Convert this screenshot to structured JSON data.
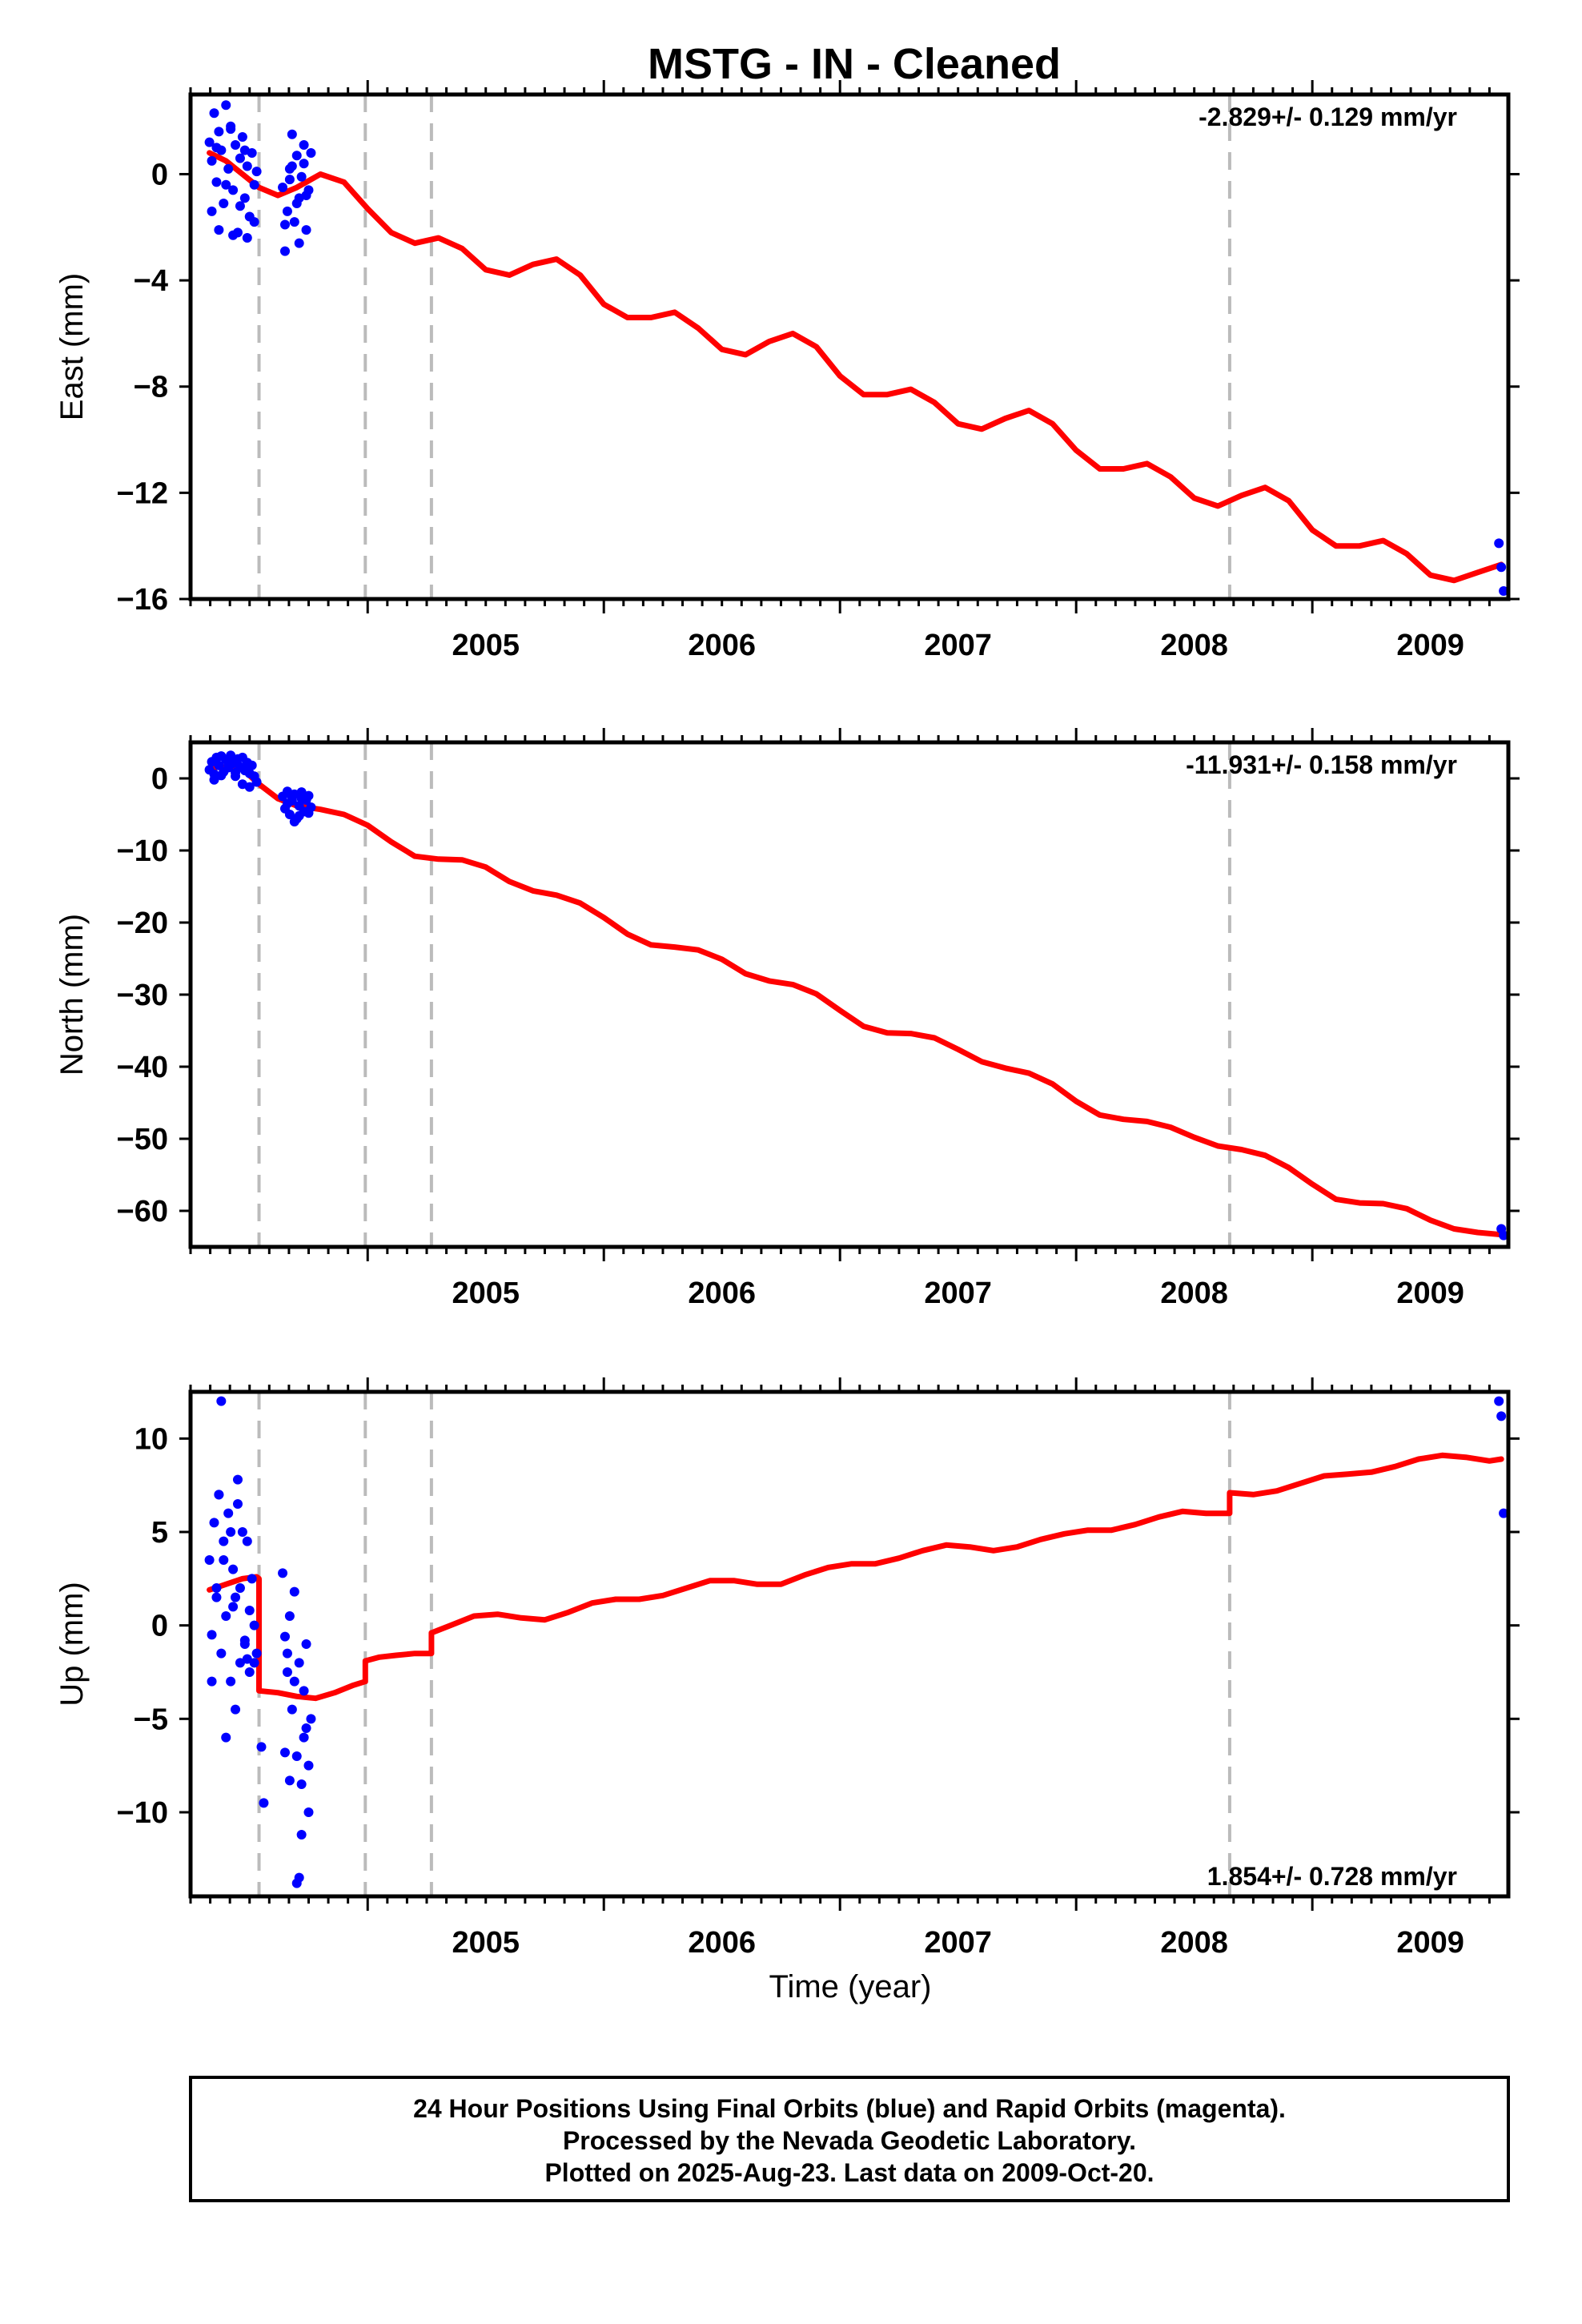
{
  "title": "MSTG  - IN - Cleaned",
  "xlabel": "Time (year)",
  "colors": {
    "data": "#0000ff",
    "model": "#ff0000",
    "breaks": "#bbbbbb",
    "frame": "#000000"
  },
  "footer": {
    "line1": "24 Hour Positions Using Final Orbits (blue) and Rapid Orbits (magenta).",
    "line2": "Processed by the Nevada Geodetic Laboratory.",
    "line3": "Plotted on 2025-Aug-23. Last data on 2009-Oct-20."
  },
  "chart_data": [
    {
      "type": "scatter",
      "panel": "east",
      "ylabel": "East (mm)",
      "rate_label": "-2.829+/- 0.129 mm/yr",
      "xlim": [
        2004.25,
        2009.83
      ],
      "ylim": [
        -16,
        3
      ],
      "yticks": [
        0,
        -4,
        -8,
        -12,
        -16
      ],
      "xticks": [
        2005,
        2006,
        2007,
        2008,
        2009
      ],
      "breaks": [
        2004.54,
        2004.99,
        2005.27,
        2008.65
      ],
      "model": {
        "x": [
          2004.33,
          2004.4,
          2004.47,
          2004.54,
          2004.62,
          2004.7,
          2004.8,
          2004.9,
          2005.0,
          2005.1,
          2005.2,
          2005.3,
          2005.4,
          2005.5,
          2005.6,
          2005.7,
          2005.8,
          2005.9,
          2006.0,
          2006.1,
          2006.2,
          2006.3,
          2006.4,
          2006.5,
          2006.6,
          2006.7,
          2006.8,
          2006.9,
          2007.0,
          2007.1,
          2007.2,
          2007.3,
          2007.4,
          2007.5,
          2007.6,
          2007.7,
          2007.8,
          2007.9,
          2008.0,
          2008.1,
          2008.2,
          2008.3,
          2008.4,
          2008.5,
          2008.6,
          2008.7,
          2008.8,
          2008.9,
          2009.0,
          2009.1,
          2009.2,
          2009.3,
          2009.4,
          2009.5,
          2009.6,
          2009.7,
          2009.8
        ],
        "y": [
          0.8,
          0.5,
          0.0,
          -0.5,
          -0.8,
          -0.5,
          0.0,
          -0.3,
          -1.3,
          -2.2,
          -2.6,
          -2.4,
          -2.8,
          -3.6,
          -3.8,
          -3.4,
          -3.2,
          -3.8,
          -4.9,
          -5.4,
          -5.4,
          -5.2,
          -5.8,
          -6.6,
          -6.8,
          -6.3,
          -6.0,
          -6.5,
          -7.6,
          -8.3,
          -8.3,
          -8.1,
          -8.6,
          -9.4,
          -9.6,
          -9.2,
          -8.9,
          -9.4,
          -10.4,
          -11.1,
          -11.1,
          -10.9,
          -11.4,
          -12.2,
          -12.5,
          -12.1,
          -11.8,
          -12.3,
          -13.4,
          -14.0,
          -14.0,
          -13.8,
          -14.3,
          -15.1,
          -15.3,
          -15.0,
          -14.7
        ]
      },
      "observations": {
        "x": [
          2004.33,
          2004.34,
          2004.35,
          2004.36,
          2004.37,
          2004.38,
          2004.39,
          2004.4,
          2004.41,
          2004.42,
          2004.43,
          2004.44,
          2004.45,
          2004.46,
          2004.47,
          2004.48,
          2004.49,
          2004.5,
          2004.51,
          2004.52,
          2004.53,
          2004.34,
          2004.37,
          2004.4,
          2004.43,
          2004.46,
          2004.49,
          2004.52,
          2004.36,
          2004.42,
          2004.48,
          2004.64,
          2004.65,
          2004.66,
          2004.67,
          2004.68,
          2004.69,
          2004.7,
          2004.71,
          2004.72,
          2004.73,
          2004.74,
          2004.75,
          2004.76,
          2004.65,
          2004.68,
          2004.71,
          2004.74,
          2004.67,
          2004.7,
          2004.73,
          2009.79,
          2009.8,
          2009.81
        ],
        "y": [
          1.2,
          0.5,
          2.3,
          -0.3,
          1.6,
          0.9,
          -1.1,
          2.6,
          0.2,
          1.8,
          -0.6,
          1.1,
          -2.2,
          0.6,
          1.4,
          -0.9,
          0.3,
          -1.6,
          0.8,
          -0.4,
          0.1,
          -1.4,
          -2.1,
          -0.4,
          -2.3,
          -1.2,
          -2.4,
          -1.8,
          1.0,
          1.7,
          0.9,
          -0.5,
          -2.9,
          -1.4,
          -0.2,
          1.5,
          -1.8,
          0.7,
          -0.9,
          -0.1,
          1.1,
          -2.1,
          -0.6,
          0.8,
          -1.9,
          0.3,
          -2.6,
          -0.8,
          0.2,
          -1.1,
          0.4,
          -13.9,
          -14.8,
          -15.7
        ]
      }
    },
    {
      "type": "scatter",
      "panel": "north",
      "ylabel": "North (mm)",
      "rate_label": "-11.931+/- 0.158 mm/yr",
      "xlim": [
        2004.25,
        2009.83
      ],
      "ylim": [
        -65,
        5
      ],
      "yticks": [
        0,
        -10,
        -20,
        -30,
        -40,
        -50,
        -60
      ],
      "xticks": [
        2005,
        2006,
        2007,
        2008,
        2009
      ],
      "breaks": [
        2004.54,
        2004.99,
        2005.27,
        2008.65
      ],
      "model": {
        "x": [
          2004.33,
          2004.4,
          2004.47,
          2004.54,
          2004.62,
          2004.7,
          2004.8,
          2004.9,
          2005.0,
          2005.1,
          2005.2,
          2005.3,
          2005.4,
          2005.5,
          2005.6,
          2005.7,
          2005.8,
          2005.9,
          2006.0,
          2006.1,
          2006.2,
          2006.3,
          2006.4,
          2006.5,
          2006.6,
          2006.7,
          2006.8,
          2006.9,
          2007.0,
          2007.1,
          2007.2,
          2007.3,
          2007.4,
          2007.5,
          2007.6,
          2007.7,
          2007.8,
          2007.9,
          2008.0,
          2008.1,
          2008.2,
          2008.3,
          2008.4,
          2008.5,
          2008.6,
          2008.7,
          2008.8,
          2008.9,
          2009.0,
          2009.1,
          2009.2,
          2009.3,
          2009.4,
          2009.5,
          2009.6,
          2009.7,
          2009.8
        ],
        "y": [
          1.5,
          1.6,
          1.3,
          -0.8,
          -2.8,
          -3.8,
          -4.3,
          -5.0,
          -6.5,
          -8.8,
          -10.8,
          -11.2,
          -11.3,
          -12.3,
          -14.3,
          -15.6,
          -16.2,
          -17.3,
          -19.3,
          -21.6,
          -23.1,
          -23.4,
          -23.8,
          -25.1,
          -27.1,
          -28.1,
          -28.6,
          -29.9,
          -32.2,
          -34.4,
          -35.3,
          -35.4,
          -36.0,
          -37.6,
          -39.3,
          -40.2,
          -40.9,
          -42.4,
          -44.8,
          -46.7,
          -47.3,
          -47.6,
          -48.4,
          -49.8,
          -51.0,
          -51.5,
          -52.3,
          -54.0,
          -56.3,
          -58.4,
          -58.9,
          -59.0,
          -59.7,
          -61.3,
          -62.5,
          -63.0,
          -63.3
        ]
      },
      "observations": {
        "x": [
          2004.33,
          2004.34,
          2004.35,
          2004.36,
          2004.37,
          2004.38,
          2004.39,
          2004.4,
          2004.41,
          2004.42,
          2004.43,
          2004.44,
          2004.45,
          2004.46,
          2004.47,
          2004.48,
          2004.49,
          2004.5,
          2004.51,
          2004.52,
          2004.53,
          2004.35,
          2004.38,
          2004.41,
          2004.44,
          2004.47,
          2004.5,
          2004.64,
          2004.65,
          2004.66,
          2004.67,
          2004.68,
          2004.69,
          2004.7,
          2004.71,
          2004.72,
          2004.73,
          2004.74,
          2004.75,
          2004.76,
          2004.66,
          2004.69,
          2004.72,
          2004.75,
          2004.68,
          2004.71,
          2009.8,
          2009.81
        ],
        "y": [
          1.2,
          2.3,
          0.6,
          2.9,
          1.8,
          3.1,
          0.9,
          2.6,
          1.5,
          3.2,
          2.1,
          0.8,
          2.7,
          1.6,
          2.9,
          1.1,
          2.2,
          0.7,
          1.8,
          0.3,
          -0.5,
          -0.2,
          0.4,
          1.9,
          0.3,
          -0.8,
          -1.2,
          -2.5,
          -4.2,
          -1.8,
          -5.0,
          -3.1,
          -2.2,
          -5.6,
          -3.8,
          -1.9,
          -4.6,
          -3.0,
          -2.4,
          -4.0,
          -3.5,
          -6.0,
          -2.8,
          -4.8,
          -2.6,
          -5.2,
          -62.5,
          -63.4
        ]
      }
    },
    {
      "type": "scatter",
      "panel": "up",
      "ylabel": "Up (mm)",
      "rate_label": "1.854+/- 0.728 mm/yr",
      "xlim": [
        2004.25,
        2009.83
      ],
      "ylim": [
        -14.5,
        12.5
      ],
      "yticks": [
        10,
        5,
        0,
        -5,
        -10
      ],
      "xticks": [
        2005,
        2006,
        2007,
        2008,
        2009
      ],
      "breaks": [
        2004.54,
        2004.99,
        2005.27,
        2008.65
      ],
      "model": {
        "x": [
          2004.33,
          2004.4,
          2004.47,
          2004.53,
          2004.54,
          2004.54,
          2004.62,
          2004.7,
          2004.78,
          2004.86,
          2004.94,
          2004.99,
          2004.99,
          2005.05,
          2005.12,
          2005.2,
          2005.27,
          2005.27,
          2005.35,
          2005.45,
          2005.55,
          2005.65,
          2005.75,
          2005.85,
          2005.95,
          2006.05,
          2006.15,
          2006.25,
          2006.35,
          2006.45,
          2006.55,
          2006.65,
          2006.75,
          2006.85,
          2006.95,
          2007.05,
          2007.15,
          2007.25,
          2007.35,
          2007.45,
          2007.55,
          2007.65,
          2007.75,
          2007.85,
          2007.95,
          2008.05,
          2008.15,
          2008.25,
          2008.35,
          2008.45,
          2008.55,
          2008.65,
          2008.65,
          2008.75,
          2008.85,
          2008.95,
          2009.05,
          2009.15,
          2009.25,
          2009.35,
          2009.45,
          2009.55,
          2009.65,
          2009.75,
          2009.8
        ],
        "y": [
          1.9,
          2.2,
          2.5,
          2.6,
          2.5,
          -3.5,
          -3.6,
          -3.8,
          -3.9,
          -3.6,
          -3.2,
          -3.0,
          -1.9,
          -1.7,
          -1.6,
          -1.5,
          -1.5,
          -0.4,
          0.0,
          0.5,
          0.6,
          0.4,
          0.3,
          0.7,
          1.2,
          1.4,
          1.4,
          1.6,
          2.0,
          2.4,
          2.4,
          2.2,
          2.2,
          2.7,
          3.1,
          3.3,
          3.3,
          3.6,
          4.0,
          4.3,
          4.2,
          4.0,
          4.2,
          4.6,
          4.9,
          5.1,
          5.1,
          5.4,
          5.8,
          6.1,
          6.0,
          6.0,
          7.1,
          7.0,
          7.2,
          7.6,
          8.0,
          8.1,
          8.2,
          8.5,
          8.9,
          9.1,
          9.0,
          8.8,
          8.9
        ]
      },
      "observations": {
        "x": [
          2004.33,
          2004.34,
          2004.35,
          2004.36,
          2004.37,
          2004.38,
          2004.39,
          2004.4,
          2004.41,
          2004.42,
          2004.43,
          2004.44,
          2004.45,
          2004.46,
          2004.47,
          2004.48,
          2004.49,
          2004.5,
          2004.51,
          2004.52,
          2004.53,
          2004.34,
          2004.36,
          2004.38,
          2004.4,
          2004.42,
          2004.44,
          2004.46,
          2004.48,
          2004.5,
          2004.52,
          2004.39,
          2004.45,
          2004.37,
          2004.43,
          2004.49,
          2004.55,
          2004.56,
          2004.64,
          2004.65,
          2004.66,
          2004.67,
          2004.68,
          2004.69,
          2004.7,
          2004.71,
          2004.72,
          2004.73,
          2004.74,
          2004.75,
          2004.76,
          2004.65,
          2004.67,
          2004.69,
          2004.71,
          2004.73,
          2004.75,
          2004.72,
          2004.66,
          2004.7,
          2004.74,
          2009.79,
          2009.8,
          2009.81
        ],
        "y": [
          3.5,
          -0.5,
          5.5,
          2.0,
          7.0,
          -1.5,
          4.5,
          0.5,
          6.0,
          -3.0,
          3.0,
          1.5,
          7.8,
          -2.0,
          5.0,
          -1.0,
          4.5,
          -2.5,
          2.5,
          0.0,
          -1.5,
          -3.0,
          1.5,
          12.0,
          -6.0,
          5.0,
          -4.5,
          2.0,
          -0.8,
          0.8,
          -2.0,
          3.5,
          6.5,
          7.0,
          1.0,
          -1.8,
          -6.5,
          -9.5,
          2.8,
          -6.8,
          -1.5,
          0.5,
          -4.5,
          -3.0,
          -7.0,
          -2.0,
          -8.5,
          -3.5,
          -1.0,
          -10.0,
          -5.0,
          -0.6,
          -8.3,
          1.8,
          -13.5,
          -6.0,
          -7.5,
          -11.2,
          -2.5,
          -13.8,
          -5.5,
          12.0,
          11.2,
          6.0
        ]
      }
    }
  ]
}
